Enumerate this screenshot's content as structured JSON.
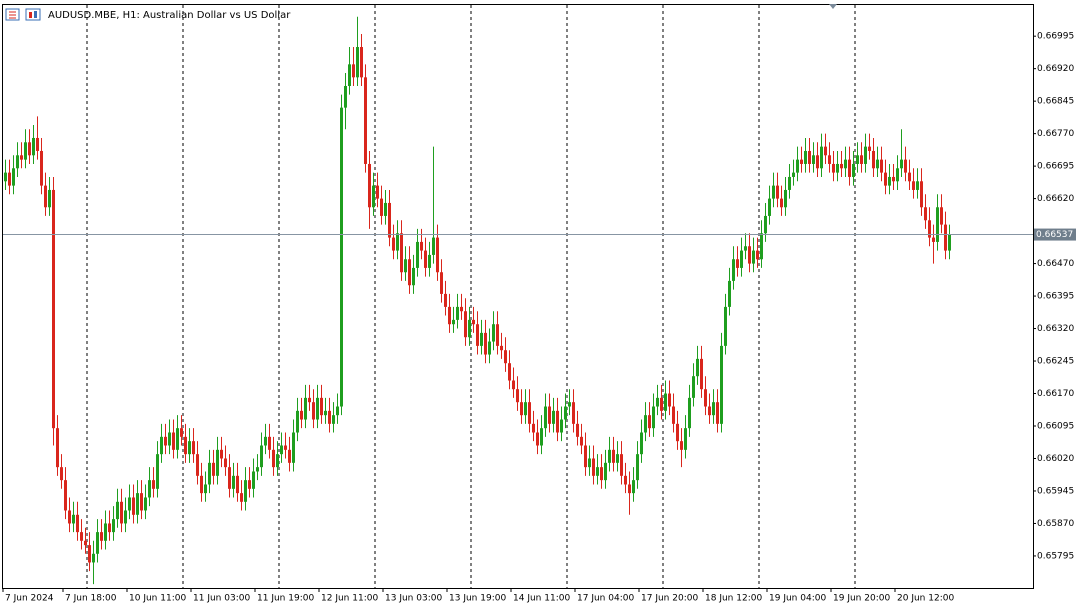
{
  "chart_data": {
    "type": "candlestick",
    "title": "AUDUSD.MBE, H1:  Australian Dollar vs US Dollar",
    "up_color": "#1f9e1f",
    "down_color": "#d9261c",
    "grid": true,
    "last_price": 0.66537,
    "ylim": [
      0.65721,
      0.67067
    ],
    "yticks": [
      0.66995,
      {
        "value": 0.6692,
        "label": "0.66920"
      },
      0.66845,
      {
        "value": 0.6677,
        "label": "0.66770"
      },
      0.66695,
      {
        "value": 0.6662,
        "label": "0.66620"
      },
      {
        "value": 0.6647,
        "label": "0.66470"
      },
      0.66395,
      {
        "value": 0.6632,
        "label": "0.66320"
      },
      0.66245,
      {
        "value": 0.6617,
        "label": "0.66170"
      },
      0.66095,
      {
        "value": 0.6602,
        "label": "0.66020"
      },
      0.65945,
      {
        "value": 0.6587,
        "label": "0.65870"
      },
      0.65795
    ],
    "categories": [
      "7 Jun 2024",
      null,
      null,
      null,
      null,
      null,
      null,
      null,
      null,
      null,
      null,
      null,
      null,
      null,
      null,
      "7 Jun 18:00",
      null,
      null,
      null,
      null,
      null,
      null,
      null,
      null,
      null,
      null,
      null,
      null,
      null,
      null,
      null,
      "10 Jun 11:00",
      null,
      null,
      null,
      null,
      null,
      null,
      null,
      null,
      null,
      null,
      null,
      null,
      null,
      null,
      null,
      "11 Jun 03:00",
      null,
      null,
      null,
      null,
      null,
      null,
      null,
      null,
      null,
      null,
      null,
      null,
      null,
      null,
      null,
      "11 Jun 19:00",
      null,
      null,
      null,
      null,
      null,
      null,
      null,
      null,
      null,
      null,
      null,
      null,
      null,
      null,
      null,
      "12 Jun 11:00",
      null,
      null,
      null,
      null,
      null,
      null,
      null,
      null,
      null,
      null,
      null,
      null,
      null,
      null,
      null,
      "13 Jun 03:00",
      null,
      null,
      null,
      null,
      null,
      null,
      null,
      null,
      null,
      null,
      null,
      null,
      null,
      null,
      null,
      "13 Jun 19:00",
      null,
      null,
      null,
      null,
      null,
      null,
      null,
      null,
      null,
      null,
      null,
      null,
      null,
      null,
      null,
      "14 Jun 11:00",
      null,
      null,
      null,
      null,
      null,
      null,
      null,
      null,
      null,
      null,
      null,
      null,
      null,
      null,
      null,
      "17 Jun 04:00",
      null,
      null,
      null,
      null,
      null,
      null,
      null,
      null,
      null,
      null,
      null,
      null,
      null,
      null,
      null,
      "17 Jun 20:00",
      null,
      null,
      null,
      null,
      null,
      null,
      null,
      null,
      null,
      null,
      null,
      null,
      null,
      null,
      null,
      "18 Jun 12:00",
      null,
      null,
      null,
      null,
      null,
      null,
      null,
      null,
      null,
      null,
      null,
      null,
      null,
      null,
      null,
      "19 Jun 04:00",
      null,
      null,
      null,
      null,
      null,
      null,
      null,
      null,
      null,
      null,
      null,
      null,
      null,
      null,
      null,
      "19 Jun 20:00",
      null,
      null,
      null,
      null,
      null,
      null,
      null,
      null,
      null,
      null,
      null,
      null,
      null,
      null,
      null,
      "20 Jun 12:00",
      null,
      null,
      null,
      null,
      null,
      null,
      null,
      null,
      null,
      null,
      null,
      null,
      null
    ],
    "open": [
      0.6666,
      0.6668,
      0.6665,
      0.6669,
      0.6672,
      0.6671,
      0.6675,
      0.6672,
      0.6676,
      0.6673,
      0.6665,
      0.666,
      0.6664,
      0.6609,
      0.66,
      0.6597,
      0.659,
      0.6587,
      0.6589,
      0.6585,
      0.6583,
      0.6582,
      0.6578,
      0.658,
      0.6585,
      0.6583,
      0.6587,
      0.6585,
      0.6588,
      0.6592,
      0.6587,
      0.659,
      0.6593,
      0.6589,
      0.6594,
      0.659,
      0.6593,
      0.6597,
      0.6595,
      0.6603,
      0.6607,
      0.6605,
      0.6608,
      0.6604,
      0.6609,
      0.6607,
      0.6603,
      0.6606,
      0.6603,
      0.6598,
      0.6594,
      0.6596,
      0.6601,
      0.6598,
      0.6604,
      0.6602,
      0.66,
      0.6595,
      0.6598,
      0.6594,
      0.6592,
      0.6597,
      0.6595,
      0.6599,
      0.66,
      0.6605,
      0.6607,
      0.6604,
      0.66,
      0.6603,
      0.6605,
      0.6604,
      0.6601,
      0.6608,
      0.6613,
      0.6611,
      0.6616,
      0.6615,
      0.6611,
      0.6616,
      0.6612,
      0.6613,
      0.661,
      0.6612,
      0.6614,
      0.6683,
      0.6688,
      0.6693,
      0.669,
      0.6697,
      0.669,
      0.667,
      0.666,
      0.6665,
      0.6662,
      0.6658,
      0.6661,
      0.6653,
      0.665,
      0.6654,
      0.6645,
      0.6648,
      0.6642,
      0.6646,
      0.6652,
      0.665,
      0.6646,
      0.6649,
      0.6653,
      0.6645,
      0.664,
      0.6637,
      0.6633,
      0.6634,
      0.6637,
      0.6636,
      0.663,
      0.6634,
      0.6633,
      0.6628,
      0.6631,
      0.6626,
      0.6629,
      0.6633,
      0.6628,
      0.6627,
      0.6624,
      0.662,
      0.6618,
      0.6615,
      0.6612,
      0.6615,
      0.661,
      0.6608,
      0.6605,
      0.6609,
      0.6614,
      0.661,
      0.6613,
      0.6608,
      0.6611,
      0.6614,
      0.6615,
      0.661,
      0.6607,
      0.6605,
      0.66,
      0.6602,
      0.6598,
      0.66,
      0.6597,
      0.6601,
      0.6604,
      0.6601,
      0.6603,
      0.6598,
      0.6596,
      0.6594,
      0.6597,
      0.6603,
      0.6608,
      0.6612,
      0.6609,
      0.6614,
      0.6616,
      0.6613,
      0.6617,
      0.6614,
      0.661,
      0.6606,
      0.6604,
      0.6609,
      0.6616,
      0.6621,
      0.6625,
      0.6618,
      0.6614,
      0.6612,
      0.6615,
      0.661,
      0.6628,
      0.6637,
      0.6643,
      0.6648,
      0.6646,
      0.665,
      0.6651,
      0.6647,
      0.665,
      0.6648,
      0.6654,
      0.6658,
      0.6662,
      0.6665,
      0.6662,
      0.666,
      0.6664,
      0.6667,
      0.6668,
      0.6671,
      0.667,
      0.6673,
      0.667,
      0.6672,
      0.6669,
      0.6674,
      0.6672,
      0.667,
      0.6668,
      0.667,
      0.6669,
      0.6671,
      0.6667,
      0.667,
      0.6672,
      0.667,
      0.6674,
      0.6673,
      0.6669,
      0.6671,
      0.6668,
      0.6665,
      0.6667,
      0.6666,
      0.6669,
      0.6671,
      0.6668,
      0.6666,
      0.6664,
      0.6666,
      0.666,
      0.6657,
      0.6653,
      0.6652,
      0.666,
      0.6656,
      0.665
    ],
    "high": [
      0.6671,
      0.6671,
      0.6672,
      0.6675,
      0.6675,
      0.6678,
      0.6678,
      0.6679,
      0.6681,
      0.6676,
      0.6668,
      0.6667,
      0.6667,
      0.6612,
      0.6603,
      0.66,
      0.6593,
      0.6592,
      0.6592,
      0.6588,
      0.6586,
      0.6585,
      0.6583,
      0.6588,
      0.6588,
      0.659,
      0.659,
      0.6591,
      0.6595,
      0.6595,
      0.6593,
      0.6596,
      0.6596,
      0.6597,
      0.6597,
      0.6596,
      0.66,
      0.66,
      0.6606,
      0.661,
      0.661,
      0.6611,
      0.6611,
      0.6612,
      0.6612,
      0.661,
      0.6609,
      0.6609,
      0.6606,
      0.6601,
      0.6599,
      0.6604,
      0.6604,
      0.6607,
      0.6607,
      0.6605,
      0.6603,
      0.6601,
      0.6601,
      0.6597,
      0.66,
      0.66,
      0.6602,
      0.6603,
      0.6608,
      0.661,
      0.661,
      0.6607,
      0.6606,
      0.6608,
      0.6608,
      0.6607,
      0.6611,
      0.6616,
      0.6616,
      0.6619,
      0.6619,
      0.6618,
      0.6619,
      0.6619,
      0.6616,
      0.6616,
      0.6615,
      0.6617,
      0.6686,
      0.6691,
      0.6697,
      0.6697,
      0.6704,
      0.67,
      0.6693,
      0.6673,
      0.6668,
      0.6668,
      0.6665,
      0.6664,
      0.6664,
      0.6656,
      0.6657,
      0.6657,
      0.6651,
      0.6651,
      0.6649,
      0.6655,
      0.6655,
      0.6653,
      0.6652,
      0.6674,
      0.6656,
      0.6648,
      0.6643,
      0.664,
      0.6637,
      0.664,
      0.664,
      0.6639,
      0.6637,
      0.6637,
      0.6636,
      0.6634,
      0.6634,
      0.6632,
      0.6636,
      0.6636,
      0.6631,
      0.663,
      0.6627,
      0.6623,
      0.6621,
      0.6618,
      0.6618,
      0.6618,
      0.6613,
      0.6611,
      0.6612,
      0.6617,
      0.6617,
      0.6616,
      0.6616,
      0.6614,
      0.6617,
      0.6618,
      0.6618,
      0.6613,
      0.661,
      0.6608,
      0.6605,
      0.6605,
      0.6603,
      0.6603,
      0.6604,
      0.6607,
      0.6607,
      0.6606,
      0.6606,
      0.6601,
      0.6599,
      0.66,
      0.6606,
      0.6611,
      0.6615,
      0.6615,
      0.6617,
      0.6619,
      0.6619,
      0.662,
      0.662,
      0.6617,
      0.6613,
      0.6609,
      0.6612,
      0.6619,
      0.6624,
      0.6628,
      0.6628,
      0.6621,
      0.6617,
      0.6618,
      0.6618,
      0.6631,
      0.664,
      0.6646,
      0.6651,
      0.6651,
      0.6653,
      0.6654,
      0.6654,
      0.6653,
      0.6653,
      0.6657,
      0.6661,
      0.6665,
      0.6668,
      0.6668,
      0.6665,
      0.6667,
      0.667,
      0.6671,
      0.6674,
      0.6674,
      0.6676,
      0.6676,
      0.6675,
      0.6675,
      0.6677,
      0.6677,
      0.6675,
      0.6673,
      0.6673,
      0.6673,
      0.6674,
      0.6674,
      0.6673,
      0.6675,
      0.6675,
      0.6677,
      0.6677,
      0.6676,
      0.6674,
      0.6674,
      0.6671,
      0.667,
      0.667,
      0.6672,
      0.6678,
      0.6674,
      0.6671,
      0.6669,
      0.6669,
      0.6669,
      0.6663,
      0.666,
      0.6656,
      0.6663,
      0.6663,
      0.6659,
      0.6656
    ],
    "low": [
      0.6664,
      0.6663,
      0.6663,
      0.6667,
      0.6669,
      0.6669,
      0.667,
      0.667,
      0.6671,
      0.6663,
      0.6658,
      0.6658,
      0.6605,
      0.6598,
      0.6595,
      0.6588,
      0.6585,
      0.6585,
      0.6583,
      0.6581,
      0.658,
      0.6576,
      0.6573,
      0.6578,
      0.6581,
      0.6581,
      0.6583,
      0.6583,
      0.6586,
      0.6585,
      0.6585,
      0.6588,
      0.6587,
      0.6587,
      0.6588,
      0.6588,
      0.6591,
      0.6593,
      0.6593,
      0.6601,
      0.6603,
      0.6603,
      0.6602,
      0.6602,
      0.6605,
      0.6601,
      0.6601,
      0.6601,
      0.6596,
      0.6592,
      0.6592,
      0.6594,
      0.6596,
      0.6596,
      0.66,
      0.6598,
      0.6593,
      0.6593,
      0.6592,
      0.659,
      0.659,
      0.6593,
      0.6593,
      0.6597,
      0.6598,
      0.6603,
      0.6602,
      0.6598,
      0.6598,
      0.6601,
      0.6602,
      0.6599,
      0.6599,
      0.6606,
      0.6609,
      0.6609,
      0.6613,
      0.6609,
      0.6609,
      0.661,
      0.661,
      0.6608,
      0.6608,
      0.661,
      0.6612,
      0.6678,
      0.6686,
      0.6688,
      0.6688,
      0.6688,
      0.6668,
      0.6655,
      0.6658,
      0.666,
      0.6656,
      0.6656,
      0.6651,
      0.6648,
      0.6648,
      0.6643,
      0.6643,
      0.664,
      0.664,
      0.6644,
      0.6648,
      0.6644,
      0.6644,
      0.6647,
      0.6643,
      0.6638,
      0.6635,
      0.6631,
      0.6631,
      0.6632,
      0.6634,
      0.6628,
      0.6628,
      0.6631,
      0.6626,
      0.6626,
      0.6624,
      0.6624,
      0.6627,
      0.6626,
      0.6625,
      0.6622,
      0.6618,
      0.6616,
      0.6613,
      0.661,
      0.661,
      0.6608,
      0.6606,
      0.6603,
      0.6603,
      0.6607,
      0.6608,
      0.6608,
      0.6606,
      0.6606,
      0.6609,
      0.6612,
      0.6608,
      0.6605,
      0.6603,
      0.6598,
      0.6598,
      0.6596,
      0.6596,
      0.6595,
      0.6595,
      0.6599,
      0.6599,
      0.6599,
      0.6596,
      0.6594,
      0.6589,
      0.6592,
      0.6595,
      0.6601,
      0.6606,
      0.6607,
      0.6607,
      0.6612,
      0.6611,
      0.6611,
      0.6612,
      0.6608,
      0.6604,
      0.66,
      0.6602,
      0.6607,
      0.6614,
      0.6619,
      0.6616,
      0.6612,
      0.661,
      0.661,
      0.6608,
      0.6608,
      0.6626,
      0.6635,
      0.6641,
      0.6644,
      0.6644,
      0.6648,
      0.6645,
      0.6645,
      0.6646,
      0.6646,
      0.6652,
      0.6656,
      0.666,
      0.666,
      0.6658,
      0.6658,
      0.6662,
      0.6665,
      0.6666,
      0.6668,
      0.6668,
      0.6668,
      0.6668,
      0.6667,
      0.6667,
      0.667,
      0.6668,
      0.6666,
      0.6666,
      0.6667,
      0.6667,
      0.6665,
      0.6665,
      0.6668,
      0.6668,
      0.6668,
      0.6671,
      0.6667,
      0.6667,
      0.6666,
      0.6663,
      0.6663,
      0.6664,
      0.6664,
      0.6667,
      0.6666,
      0.6664,
      0.6662,
      0.6662,
      0.6658,
      0.6655,
      0.6651,
      0.6647,
      0.665,
      0.6654,
      0.6648,
      0.6648
    ],
    "close": [
      0.6668,
      0.6665,
      0.6669,
      0.6672,
      0.6671,
      0.6675,
      0.6672,
      0.6676,
      0.6673,
      0.6665,
      0.666,
      0.6664,
      0.6609,
      0.66,
      0.6597,
      0.659,
      0.6587,
      0.6589,
      0.6585,
      0.6583,
      0.6582,
      0.6578,
      0.658,
      0.6585,
      0.6583,
      0.6587,
      0.6585,
      0.6588,
      0.6592,
      0.6587,
      0.659,
      0.6593,
      0.6589,
      0.6594,
      0.659,
      0.6593,
      0.6597,
      0.6595,
      0.6603,
      0.6607,
      0.6605,
      0.6608,
      0.6604,
      0.6609,
      0.6607,
      0.6603,
      0.6606,
      0.6603,
      0.6598,
      0.6594,
      0.6596,
      0.6601,
      0.6598,
      0.6604,
      0.6602,
      0.66,
      0.6595,
      0.6598,
      0.6594,
      0.6592,
      0.6597,
      0.6595,
      0.6599,
      0.66,
      0.6605,
      0.6607,
      0.6604,
      0.66,
      0.6603,
      0.6605,
      0.6604,
      0.6601,
      0.6608,
      0.6613,
      0.6611,
      0.6616,
      0.6615,
      0.6611,
      0.6616,
      0.6612,
      0.6613,
      0.661,
      0.6612,
      0.6614,
      0.6683,
      0.6688,
      0.6693,
      0.669,
      0.6697,
      0.669,
      0.667,
      0.666,
      0.6665,
      0.6662,
      0.6658,
      0.6661,
      0.6653,
      0.665,
      0.6654,
      0.6645,
      0.6648,
      0.6642,
      0.6646,
      0.6652,
      0.665,
      0.6646,
      0.6649,
      0.6653,
      0.6645,
      0.664,
      0.6637,
      0.6633,
      0.6634,
      0.6637,
      0.6636,
      0.663,
      0.6634,
      0.6633,
      0.6628,
      0.6631,
      0.6626,
      0.6629,
      0.6633,
      0.6628,
      0.6627,
      0.6624,
      0.662,
      0.6618,
      0.6615,
      0.6612,
      0.6615,
      0.661,
      0.6608,
      0.6605,
      0.6609,
      0.6614,
      0.661,
      0.6613,
      0.6608,
      0.6611,
      0.6614,
      0.6615,
      0.661,
      0.6607,
      0.6605,
      0.66,
      0.6602,
      0.6598,
      0.66,
      0.6597,
      0.6601,
      0.6604,
      0.6601,
      0.6603,
      0.6598,
      0.6596,
      0.6594,
      0.6597,
      0.6603,
      0.6608,
      0.6612,
      0.6609,
      0.6614,
      0.6616,
      0.6613,
      0.6617,
      0.6614,
      0.661,
      0.6606,
      0.6604,
      0.6609,
      0.6616,
      0.6621,
      0.6625,
      0.6618,
      0.6614,
      0.6612,
      0.6615,
      0.661,
      0.6628,
      0.6637,
      0.6643,
      0.6648,
      0.6646,
      0.665,
      0.6651,
      0.6647,
      0.665,
      0.6648,
      0.6654,
      0.6658,
      0.6662,
      0.6665,
      0.6662,
      0.666,
      0.6664,
      0.6667,
      0.6668,
      0.6671,
      0.667,
      0.6673,
      0.667,
      0.6672,
      0.6669,
      0.6674,
      0.6672,
      0.667,
      0.6668,
      0.667,
      0.6669,
      0.6671,
      0.6667,
      0.667,
      0.6672,
      0.667,
      0.6674,
      0.6673,
      0.6669,
      0.6671,
      0.6668,
      0.6665,
      0.6667,
      0.6666,
      0.6669,
      0.6671,
      0.6668,
      0.6666,
      0.6664,
      0.6666,
      0.666,
      0.6657,
      0.6653,
      0.6652,
      0.666,
      0.6656,
      0.665,
      0.66537
    ]
  }
}
